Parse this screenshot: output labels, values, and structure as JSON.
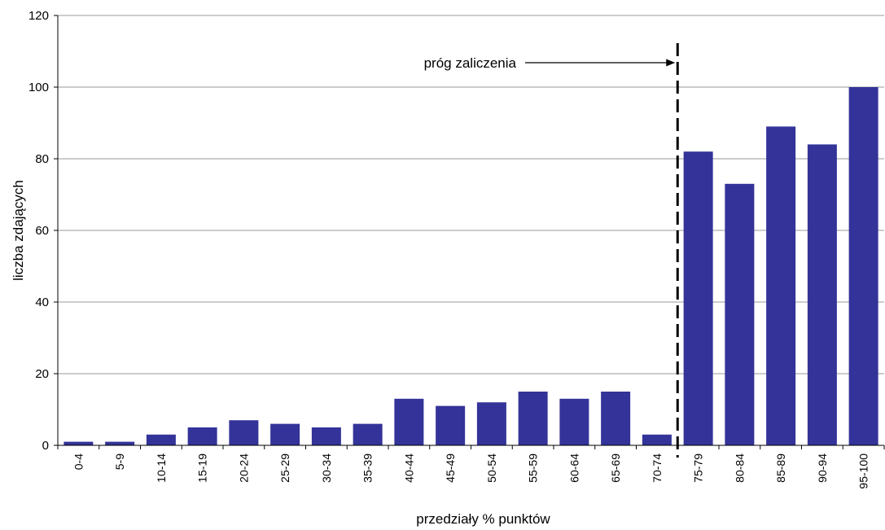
{
  "chart_data": {
    "type": "bar",
    "xlabel": "przedziały % punktów",
    "ylabel": "liczba zdających",
    "ylim": [
      0,
      120
    ],
    "yticks": [
      0,
      20,
      40,
      60,
      80,
      100,
      120
    ],
    "grid": true,
    "categories": [
      "0-4",
      "5-9",
      "10-14",
      "15-19",
      "20-24",
      "25-29",
      "30-34",
      "35-39",
      "40-44",
      "45-49",
      "50-54",
      "55-59",
      "60-64",
      "65-69",
      "70-74",
      "75-79",
      "80-84",
      "85-89",
      "90-94",
      "95-100"
    ],
    "values": [
      1,
      1,
      3,
      5,
      7,
      6,
      5,
      6,
      13,
      11,
      12,
      15,
      13,
      15,
      3,
      82,
      73,
      89,
      84,
      100
    ],
    "annotation": {
      "text": "próg zaliczenia",
      "threshold_between": [
        "70-74",
        "75-79"
      ]
    },
    "colors": {
      "bar": "#333399",
      "grid": "#999999",
      "threshold_line": "#000000"
    }
  }
}
